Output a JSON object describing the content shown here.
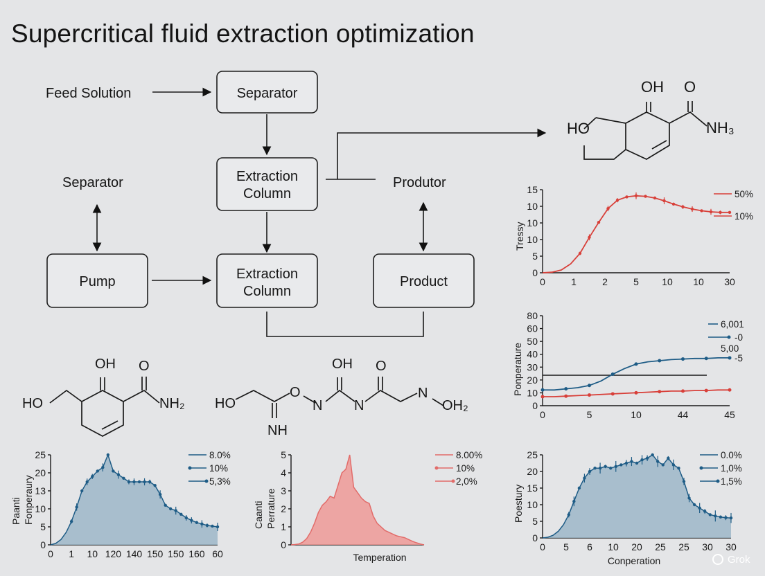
{
  "title": "Supercritical fluid extraction optimization",
  "flow": {
    "feed": "Feed Solution",
    "separator_top": "Separator",
    "extraction_col_1": [
      "Extraction",
      "Column"
    ],
    "separator_left": "Separator",
    "produtor": "Produtor",
    "pump": "Pump",
    "extraction_col_2": [
      "Extraction",
      "Column"
    ],
    "product": "Product"
  },
  "molecules": {
    "m1": {
      "oh": "OH",
      "o": "O",
      "ho": "HO",
      "nh": "NH₃"
    },
    "m2": {
      "oh": "OH",
      "o": "O",
      "ho": "HO",
      "nh": "NH₂"
    },
    "m3": {
      "oh": "OH",
      "o2": "O",
      "ho": "HO",
      "o": "O",
      "n1": "N",
      "n2": "N",
      "n3": "N",
      "oh2": "OH₂",
      "nh": "NH"
    }
  },
  "charts": {
    "tr": {
      "ylabel": "Tressy",
      "yticks": [
        "15",
        "10",
        "10",
        "10",
        "5",
        "0"
      ],
      "xticks": [
        "0",
        "1",
        "2",
        "5",
        "10",
        "10",
        "30"
      ],
      "legend": [
        "50%",
        "10%"
      ],
      "color": "#d8403a",
      "series": [
        0,
        0.1,
        0.5,
        1.6,
        3.5,
        6.4,
        9.1,
        11.6,
        13.1,
        13.7,
        13.9,
        13.8,
        13.5,
        13.0,
        12.4,
        11.9,
        11.5,
        11.2,
        11.0,
        10.9,
        10.9
      ]
    },
    "mr": {
      "ylabel": "Ponperature",
      "yticks": [
        "80",
        "60",
        "50",
        "40",
        "30",
        "20",
        "10",
        "0"
      ],
      "xticks": [
        "0",
        "5",
        "10",
        "44",
        "45"
      ],
      "legend": [
        "6,001",
        "-0",
        "5,00",
        "-5"
      ],
      "blue": "#1e5c86",
      "red": "#d8403a",
      "blue_series": [
        14,
        14,
        15,
        16,
        18,
        22,
        28,
        33,
        37,
        39,
        40,
        41,
        41.5,
        42,
        42,
        42.5,
        42.5
      ],
      "red_series": [
        8,
        8,
        8.5,
        9,
        9.5,
        10,
        10.5,
        11,
        11.5,
        12,
        12.5,
        13,
        13,
        13.5,
        13.5,
        14,
        14
      ]
    },
    "bl": {
      "ylabel": [
        "Paanti",
        "Fonperaury"
      ],
      "yticks": [
        "25",
        "20",
        "13",
        "10",
        "5",
        "0"
      ],
      "xticks": [
        "0",
        "1",
        "10",
        "120",
        "140",
        "150",
        "150",
        "160",
        "60"
      ],
      "legend": [
        "8.0%",
        "10%",
        "5,3%"
      ],
      "color": "#1e5c86",
      "fill": "#9db7c8",
      "series": [
        0,
        0.4,
        1.5,
        3.5,
        6.5,
        10.5,
        15,
        17.5,
        19,
        20.5,
        21.5,
        25,
        20.5,
        19.5,
        18.5,
        17.5,
        17.5,
        17.5,
        17.5,
        17.5,
        16.5,
        14,
        11,
        10,
        9.5,
        8.5,
        7.5,
        6.8,
        6.2,
        5.8,
        5.4,
        5.2,
        5
      ]
    },
    "bm": {
      "ylabel": [
        "Caanti",
        "Perrature"
      ],
      "yticks": [
        "5",
        "4",
        "3",
        "2",
        "1",
        "0"
      ],
      "xlabel": "Temperation",
      "legend": [
        "8.00%",
        "10%",
        "2,0%"
      ],
      "color": "#e26c6a",
      "fill": "#ee9a96",
      "series": [
        0,
        0.02,
        0.05,
        0.15,
        0.35,
        0.7,
        1.2,
        1.8,
        2.2,
        2.4,
        2.7,
        2.6,
        3.3,
        4.0,
        4.2,
        5.0,
        3.2,
        2.9,
        2.6,
        2.4,
        2.3,
        1.6,
        1.2,
        1.0,
        0.8,
        0.7,
        0.6,
        0.5,
        0.45,
        0.4,
        0.3,
        0.2,
        0.12,
        0.05,
        0
      ]
    },
    "br": {
      "ylabel": "Poestury",
      "yticks": [
        "25",
        "20",
        "15",
        "10",
        "5",
        "0"
      ],
      "xticks": [
        "0",
        "5",
        "6",
        "10",
        "20",
        "25",
        "25",
        "30",
        "30"
      ],
      "xlabel": "Conperation",
      "legend": [
        "0.0%",
        "1,0%",
        "1,5%"
      ],
      "color": "#1e5c86",
      "fill": "#9db7c8",
      "series": [
        0,
        0.2,
        0.8,
        2,
        4,
        7,
        11,
        15,
        18,
        20,
        21,
        21,
        21.5,
        21,
        21.5,
        22,
        22.5,
        23,
        22.5,
        23.5,
        24,
        25,
        23,
        22,
        24,
        22,
        21,
        17,
        12,
        10,
        9,
        8,
        7,
        6.6,
        6.3,
        6.1,
        6
      ]
    }
  },
  "watermark": "Grok"
}
